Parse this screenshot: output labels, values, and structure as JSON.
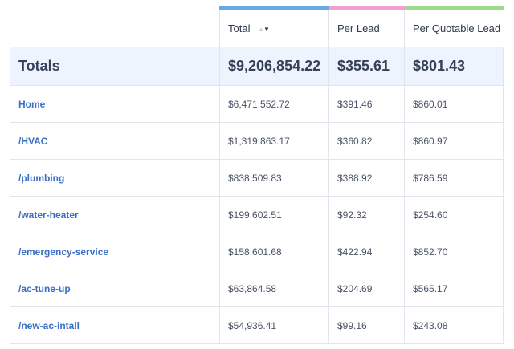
{
  "header": {
    "columns": [
      {
        "label": "Total",
        "sort": "descending"
      },
      {
        "label": "Per Lead"
      },
      {
        "label": "Per Quotable Lead"
      }
    ],
    "accent_colors": [
      "#6aa8e3",
      "#f09fcf",
      "#9fdc8a"
    ]
  },
  "totals": {
    "label": "Totals",
    "total": "$9,206,854.22",
    "per_lead": "$355.61",
    "per_quotable_lead": "$801.43"
  },
  "rows": [
    {
      "page": "Home",
      "total": "$6,471,552.72",
      "per_lead": "$391.46",
      "per_quotable_lead": "$860.01"
    },
    {
      "page": "/HVAC",
      "total": "$1,319,863.17",
      "per_lead": "$360.82",
      "per_quotable_lead": "$860.97"
    },
    {
      "page": "/plumbing",
      "total": "$838,509.83",
      "per_lead": "$388.92",
      "per_quotable_lead": "$786.59"
    },
    {
      "page": "/water-heater",
      "total": "$199,602.51",
      "per_lead": "$92.32",
      "per_quotable_lead": "$254.60"
    },
    {
      "page": "/emergency-service",
      "total": "$158,601.68",
      "per_lead": "$422.94",
      "per_quotable_lead": "$852.70"
    },
    {
      "page": "/ac-tune-up",
      "total": "$63,864.58",
      "per_lead": "$204.69",
      "per_quotable_lead": "$565.17"
    },
    {
      "page": "/new-ac-intall",
      "total": "$54,936.41",
      "per_lead": "$99.16",
      "per_quotable_lead": "$243.08"
    }
  ],
  "sort_icons": {
    "up": "▲",
    "down": "▼"
  }
}
